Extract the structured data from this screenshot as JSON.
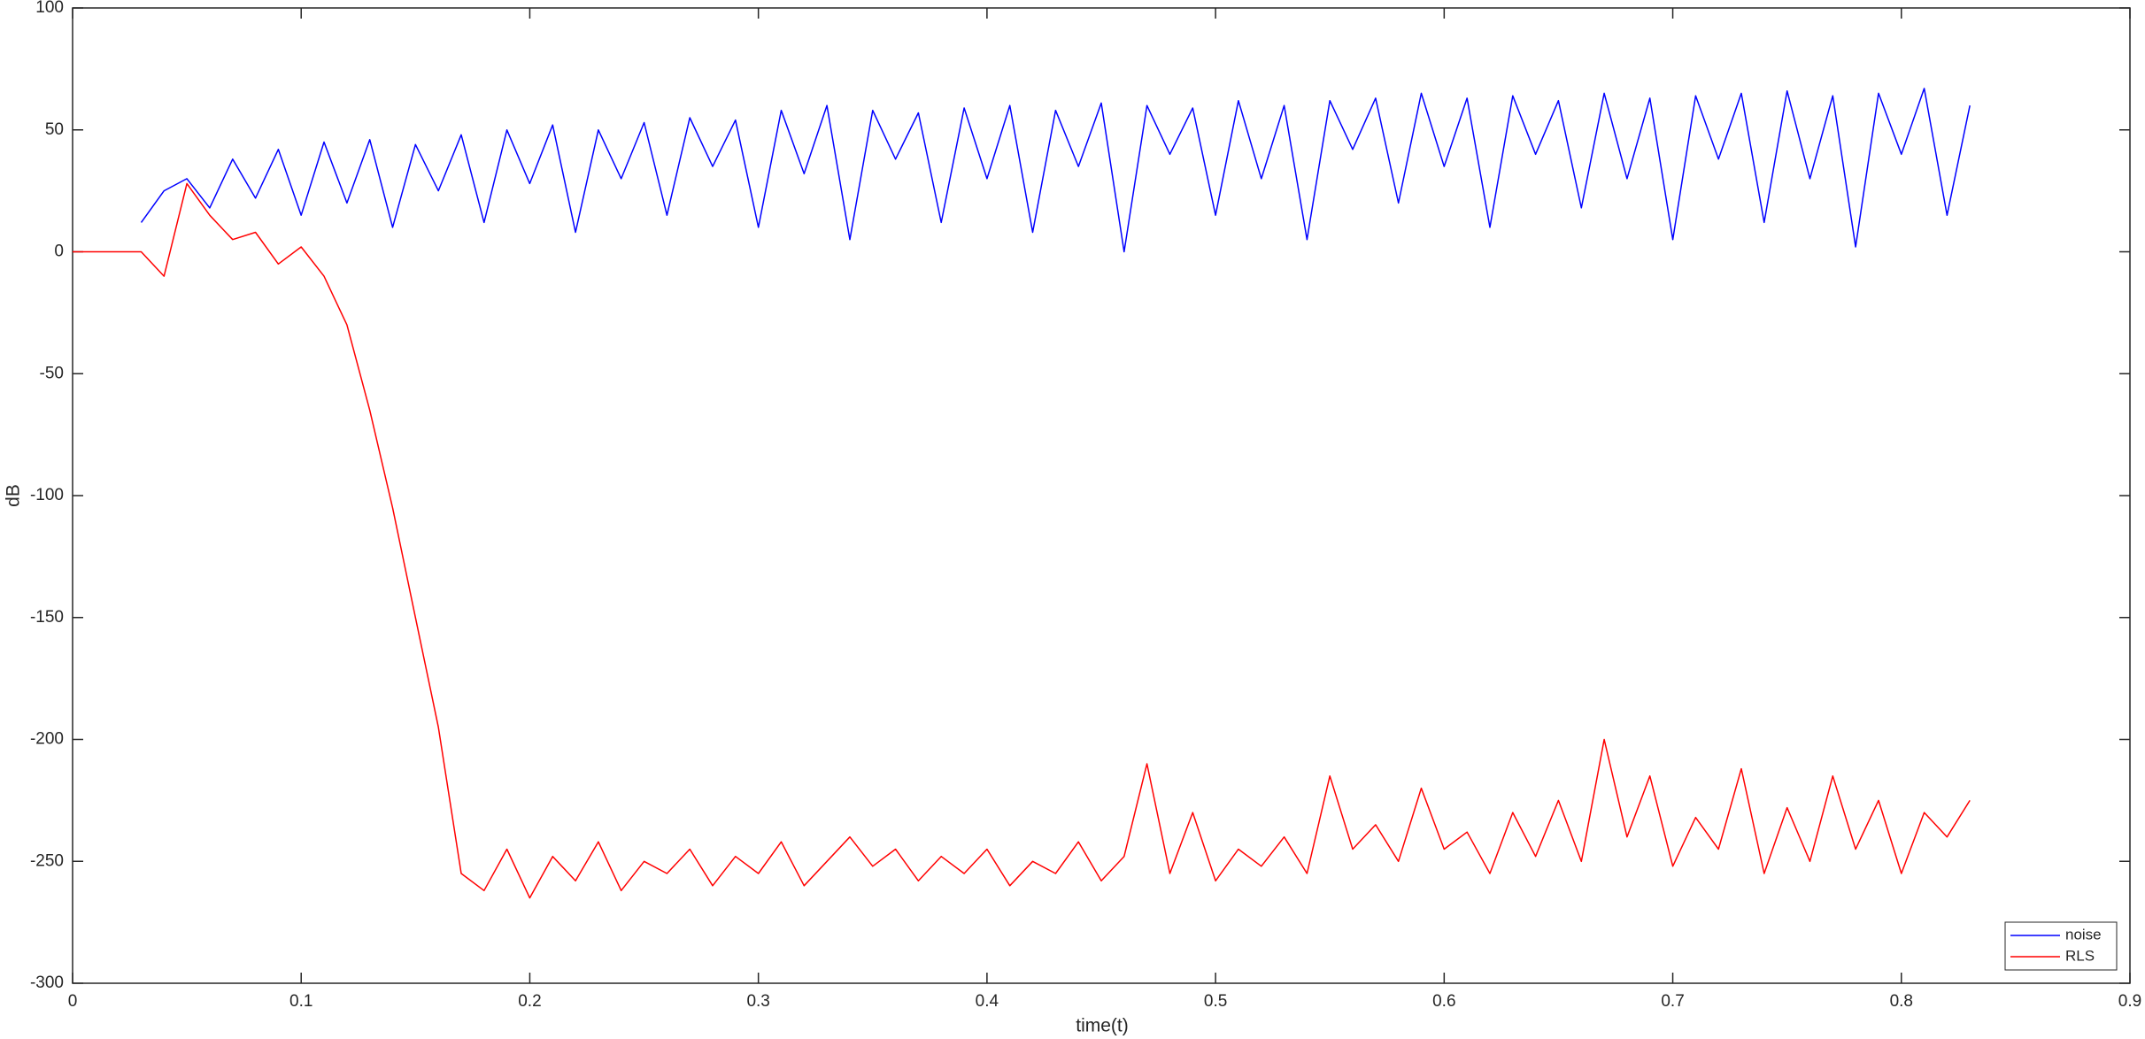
{
  "chart_data": {
    "type": "line",
    "xlabel": "time(t)",
    "ylabel": "dB",
    "x": [
      0,
      0.01,
      0.02,
      0.03,
      0.04,
      0.05,
      0.06,
      0.07,
      0.08,
      0.09,
      0.1,
      0.11,
      0.12,
      0.13,
      0.14,
      0.15,
      0.16,
      0.17,
      0.18,
      0.19,
      0.2,
      0.21,
      0.22,
      0.23,
      0.24,
      0.25,
      0.26,
      0.27,
      0.28,
      0.29,
      0.3,
      0.31,
      0.32,
      0.33,
      0.34,
      0.35,
      0.36,
      0.37,
      0.38,
      0.39,
      0.4,
      0.41,
      0.42,
      0.43,
      0.44,
      0.45,
      0.46,
      0.47,
      0.48,
      0.49,
      0.5,
      0.51,
      0.52,
      0.53,
      0.54,
      0.55,
      0.56,
      0.57,
      0.58,
      0.59,
      0.6,
      0.61,
      0.62,
      0.63,
      0.64,
      0.65,
      0.66,
      0.67,
      0.68,
      0.69,
      0.7,
      0.71,
      0.72,
      0.73,
      0.74,
      0.75,
      0.76,
      0.77,
      0.78,
      0.79,
      0.8,
      0.81,
      0.82,
      0.83
    ],
    "series": [
      {
        "name": "noise",
        "color": "#0000ff",
        "values": [
          null,
          null,
          null,
          12,
          25,
          30,
          18,
          38,
          22,
          42,
          15,
          45,
          20,
          46,
          10,
          44,
          25,
          48,
          12,
          50,
          28,
          52,
          8,
          50,
          30,
          53,
          15,
          55,
          35,
          54,
          10,
          58,
          32,
          60,
          5,
          58,
          38,
          57,
          12,
          59,
          30,
          60,
          8,
          58,
          35,
          61,
          0,
          60,
          40,
          59,
          15,
          62,
          30,
          60,
          5,
          62,
          42,
          63,
          20,
          65,
          35,
          63,
          10,
          64,
          40,
          62,
          18,
          65,
          30,
          63,
          5,
          64,
          38,
          65,
          12,
          66,
          30,
          64,
          2,
          65,
          40,
          67,
          15,
          60
        ]
      },
      {
        "name": "RLS",
        "color": "#ff0000",
        "values": [
          0,
          0,
          0,
          0,
          -10,
          28,
          15,
          5,
          8,
          -5,
          2,
          -10,
          -30,
          -65,
          -105,
          -150,
          -195,
          -255,
          -262,
          -245,
          -265,
          -248,
          -258,
          -242,
          -262,
          -250,
          -255,
          -245,
          -260,
          -248,
          -255,
          -242,
          -260,
          -250,
          -240,
          -252,
          -245,
          -258,
          -248,
          -255,
          -245,
          -260,
          -250,
          -255,
          -242,
          -258,
          -248,
          -210,
          -255,
          -230,
          -258,
          -245,
          -252,
          -240,
          -255,
          -215,
          -245,
          -235,
          -250,
          -220,
          -245,
          -238,
          -255,
          -230,
          -248,
          -225,
          -250,
          -200,
          -240,
          -215,
          -252,
          -232,
          -245,
          -212,
          -255,
          -228,
          -250,
          -215,
          -245,
          -225,
          -255,
          -230,
          -240,
          -225
        ]
      }
    ],
    "xlim": [
      0,
      0.9
    ],
    "xticks": [
      0,
      0.1,
      0.2,
      0.3,
      0.4,
      0.5,
      0.6,
      0.7,
      0.8,
      0.9
    ],
    "ylim": [
      -300,
      100
    ],
    "yticks": [
      -300,
      -250,
      -200,
      -150,
      -100,
      -50,
      0,
      50,
      100
    ],
    "legend": "lower right"
  }
}
